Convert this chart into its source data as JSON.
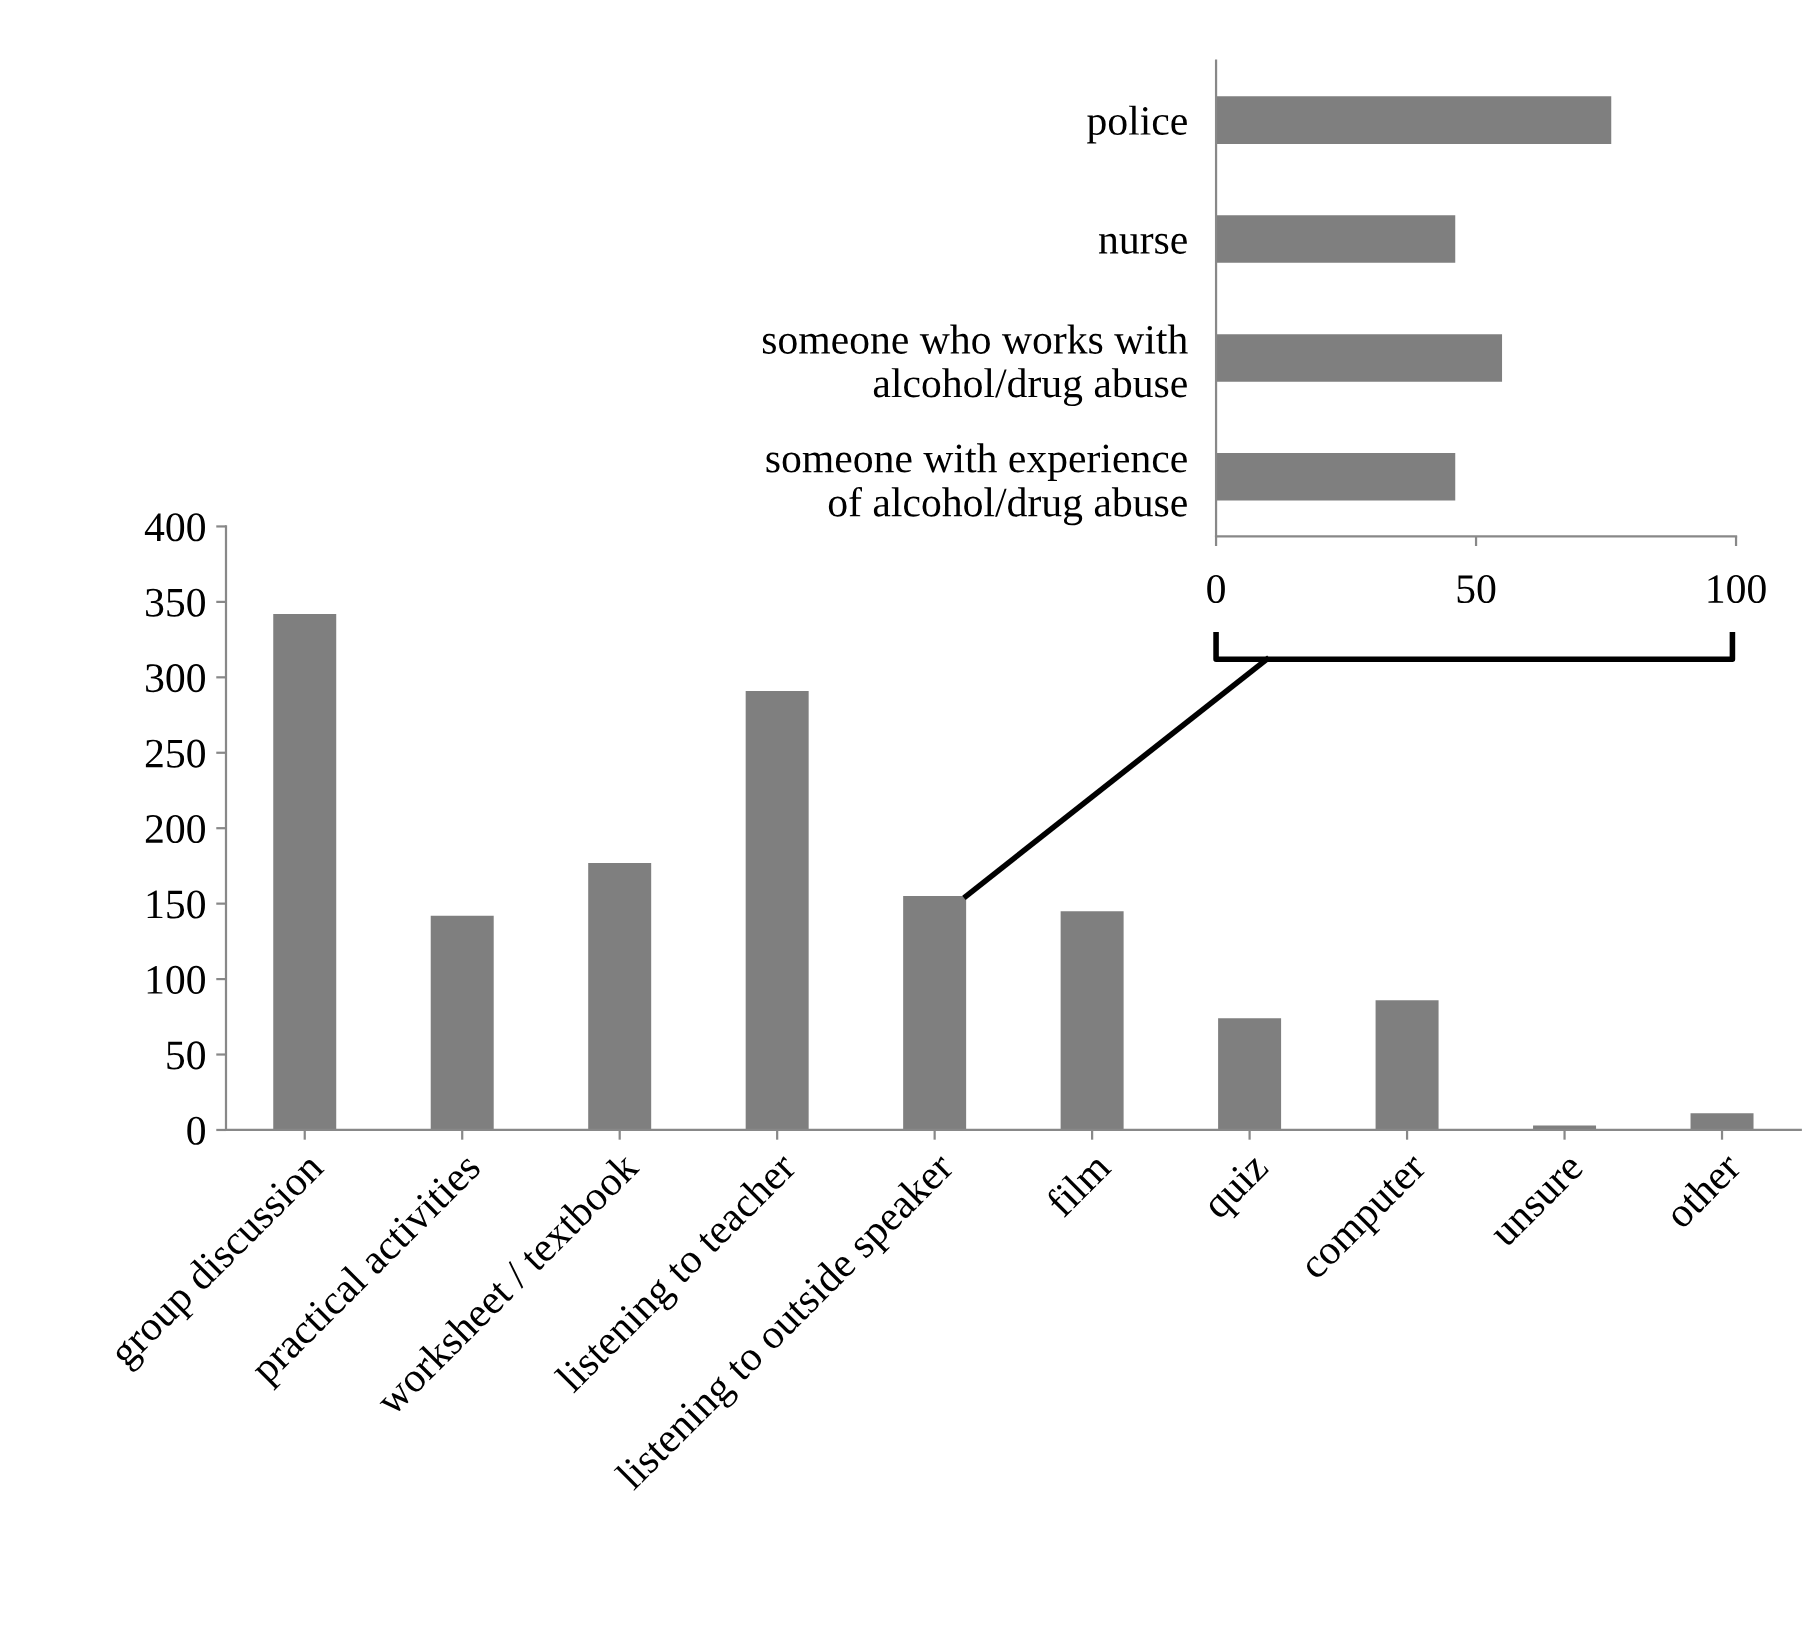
{
  "chart_data": [
    {
      "type": "bar",
      "categories": [
        "group discussion",
        "practical activities",
        "worksheet / textbook",
        "listening to teacher",
        "listening to outside speaker",
        "film",
        "quiz",
        "computer",
        "unsure",
        "other"
      ],
      "values": [
        342,
        142,
        177,
        291,
        155,
        145,
        74,
        86,
        3,
        11
      ],
      "color": "#7f7f7f",
      "ylim": [
        0,
        400
      ],
      "yticks": [
        0,
        50,
        100,
        150,
        200,
        250,
        300,
        350,
        400
      ],
      "grid": false
    },
    {
      "type": "bar",
      "orientation": "horizontal",
      "categories": [
        "police",
        "nurse",
        "someone who works with\nalcohol/drug abuse",
        "someone with experience\nof alcohol/drug abuse"
      ],
      "values": [
        76,
        46,
        55,
        46
      ],
      "color": "#7f7f7f",
      "xlim": [
        0,
        100
      ],
      "xticks": [
        0,
        50,
        100
      ],
      "grid": false
    }
  ]
}
